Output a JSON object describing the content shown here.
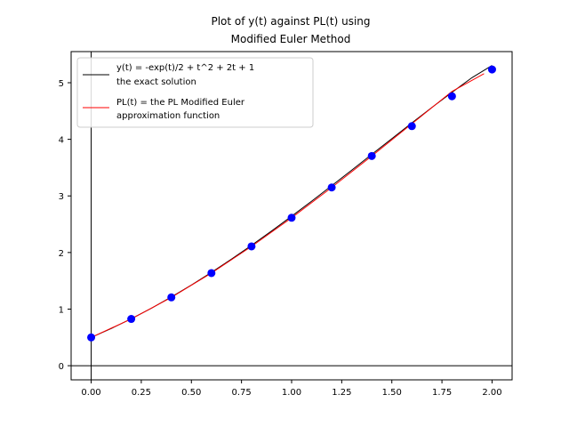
{
  "chart_data": {
    "type": "line",
    "title_lines": [
      "Plot of y(t) against PL(t) using",
      "Modified Euler Method"
    ],
    "xlabel": "",
    "ylabel": "",
    "xlim": [
      -0.1,
      2.1
    ],
    "ylim": [
      -0.25,
      5.55
    ],
    "x_ticks": [
      0.0,
      0.25,
      0.5,
      0.75,
      1.0,
      1.25,
      1.5,
      1.75,
      2.0
    ],
    "x_tick_labels": [
      "0.00",
      "0.25",
      "0.50",
      "0.75",
      "1.00",
      "1.25",
      "1.50",
      "1.75",
      "2.00"
    ],
    "y_ticks": [
      0,
      1,
      2,
      3,
      4,
      5
    ],
    "y_tick_labels": [
      "0",
      "1",
      "2",
      "3",
      "4",
      "5"
    ],
    "grid": false,
    "legend_position": "top-left",
    "series": [
      {
        "name": "y(t) = -exp(t)/2 + t^2 + 2t + 1",
        "name_line2": "the exact solution",
        "kind": "line",
        "color": "#000000",
        "x": [
          0.0,
          0.1,
          0.2,
          0.3,
          0.4,
          0.5,
          0.6,
          0.7,
          0.8,
          0.9,
          1.0,
          1.1,
          1.2,
          1.3,
          1.4,
          1.5,
          1.6,
          1.7,
          1.8,
          1.9,
          2.0
        ],
        "y": [
          0.5,
          0.657,
          0.829,
          1.015,
          1.214,
          1.426,
          1.649,
          1.883,
          2.127,
          2.38,
          2.641,
          2.908,
          3.18,
          3.456,
          3.734,
          4.012,
          4.29,
          4.563,
          4.83,
          5.09,
          5.305
        ]
      },
      {
        "name": "PL(t) = the PL Modified Euler",
        "name_line2": "approximation function",
        "kind": "line",
        "color": "#ff0000",
        "x": [
          0.0,
          0.2,
          0.4,
          0.6,
          0.8,
          1.0,
          1.2,
          1.4,
          1.6,
          1.8,
          1.96
        ],
        "y": [
          0.5,
          0.826,
          1.207,
          1.637,
          2.108,
          2.614,
          3.149,
          3.706,
          4.275,
          4.846,
          5.16
        ]
      },
      {
        "name": "",
        "kind": "scatter",
        "color": "#0000ff",
        "x": [
          0.0,
          0.2,
          0.4,
          0.6,
          0.8,
          1.0,
          1.2,
          1.4,
          1.6,
          1.8,
          2.0
        ],
        "y": [
          0.5,
          0.826,
          1.207,
          1.637,
          2.108,
          2.614,
          3.149,
          3.706,
          4.233,
          4.761,
          5.234
        ]
      }
    ],
    "axis_lines": {
      "x_zero": 0,
      "y_zero": 0,
      "color": "#000000"
    }
  }
}
